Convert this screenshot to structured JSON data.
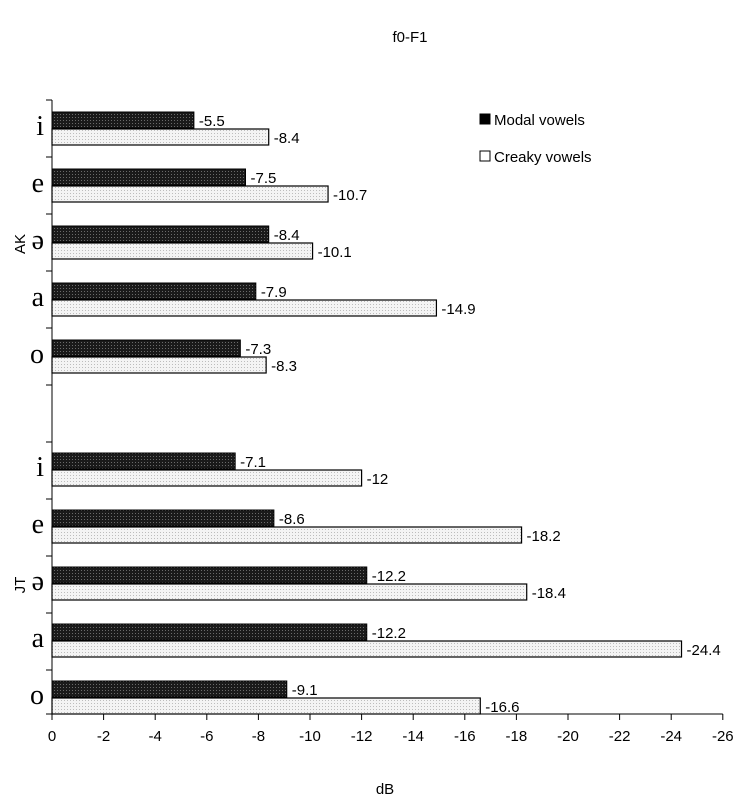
{
  "chart_data": {
    "type": "bar",
    "orientation": "horizontal",
    "title": "f0-F1",
    "xlabel": "dB",
    "xlim": [
      0,
      -26
    ],
    "xticks": [
      0,
      -2,
      -4,
      -6,
      -8,
      -10,
      -12,
      -14,
      -16,
      -18,
      -20,
      -22,
      -24,
      -26
    ],
    "grid": false,
    "legend_position": "top-right",
    "groups": [
      {
        "speaker": "AK",
        "categories": [
          "i",
          "e",
          "ə",
          "a",
          "o"
        ],
        "modal": [
          -5.5,
          -7.5,
          -8.4,
          -7.9,
          -7.3
        ],
        "creaky": [
          -8.4,
          -10.7,
          -10.1,
          -14.9,
          -8.3
        ]
      },
      {
        "speaker": "JT",
        "categories": [
          "i",
          "e",
          "ə",
          "a",
          "o"
        ],
        "modal": [
          -7.1,
          -8.6,
          -12.2,
          -12.2,
          -9.1
        ],
        "creaky": [
          -12,
          -18.2,
          -18.4,
          -24.4,
          -16.6
        ]
      }
    ],
    "series": [
      {
        "name": "Modal vowels",
        "key": "modal",
        "color": "#000000"
      },
      {
        "name": "Creaky vowels",
        "key": "creaky",
        "color": "#ffffff"
      }
    ]
  }
}
